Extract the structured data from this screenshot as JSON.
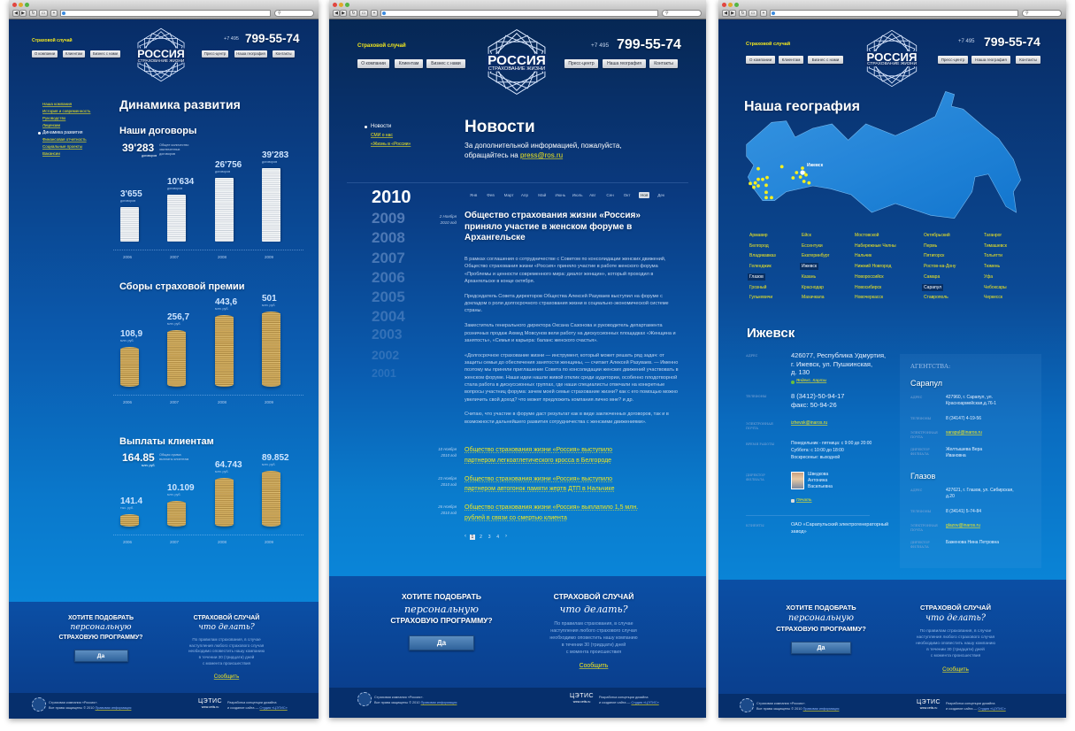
{
  "colors": {
    "accent_yellow": "#f3e81e",
    "bg_dark": "#072a5e",
    "bg_light": "#0a82d4",
    "cta_band": "#0a4a9e",
    "footer": "#062f6c"
  },
  "header": {
    "case_link": "Страховой случай",
    "phone_prefix": "+7 495",
    "phone": "799-55-74",
    "logo_title": "РОССИЯ",
    "logo_subtitle": "СТРАХОВАНИЕ ЖИЗНИ",
    "nav_left": [
      "О компании",
      "Клиентам",
      "Бизнес с нами"
    ],
    "nav_right": [
      "Пресс-центр",
      "Наша география",
      "Контакты"
    ]
  },
  "footer": {
    "cta_left": {
      "line1": "ХОТИТЕ ПОДОБРАТЬ",
      "line2": "персональную",
      "line3": "СТРАХОВУЮ ПРОГРАММУ?",
      "button": "Да"
    },
    "cta_right": {
      "title": "СТРАХОВОЙ СЛУЧАЙ",
      "subtitle": "что делать?",
      "lines": [
        "По правилам страхования, в случае",
        "наступления любого страхового случая",
        "необходимо оповестить нашу компанию",
        "в течении 30 (тридцати) дней",
        "с момента происшествия"
      ],
      "link": "Сообщить"
    },
    "company": "Страховая компания «Россия».",
    "rights": "Все права защищены © 2010",
    "legal_link": "Правовая информация",
    "studio_logo": "ЦЭТИС",
    "studio_url": "www.cetis.ru",
    "dev_line1": "Разработка концепции дизайна",
    "dev_line2": "и создание сайта —",
    "studio_link": "Студия «ЦЭТИС»"
  },
  "page_dynamics": {
    "sidebar": [
      {
        "label": "Наша компания",
        "active": false
      },
      {
        "label": "История и современность",
        "active": false
      },
      {
        "label": "Руководство",
        "active": false
      },
      {
        "label": "Лицензии",
        "active": false
      },
      {
        "label": "Динамика развития",
        "active": true
      },
      {
        "label": "Финансовая отчетность",
        "active": false
      },
      {
        "label": "Социальные проекты",
        "active": false
      },
      {
        "label": "Вакансии",
        "active": false
      }
    ],
    "title": "Динамика развития",
    "sections": [
      {
        "title": "Наши договоры",
        "kind": "paper",
        "summary": {
          "value": "39'283",
          "unit": "договоров",
          "description": "Общее количество заключенных договоров"
        },
        "items": [
          {
            "year": "2006",
            "label": "3'655",
            "unit": "договоров",
            "value": 3655
          },
          {
            "year": "2007",
            "label": "10'634",
            "unit": "договоров",
            "value": 10634
          },
          {
            "year": "2008",
            "label": "26'756",
            "unit": "договоров",
            "value": 26756
          },
          {
            "year": "2009",
            "label": "39'283",
            "unit": "договоров",
            "value": 39283
          }
        ]
      },
      {
        "title": "Сборы страховой премии",
        "kind": "coins",
        "items": [
          {
            "year": "2006",
            "label": "108,9",
            "unit": "млн. руб.",
            "value": 108.9
          },
          {
            "year": "2007",
            "label": "256,7",
            "unit": "млн. руб.",
            "value": 256.7
          },
          {
            "year": "2008",
            "label": "443,6",
            "unit": "млн. руб.",
            "value": 443.6
          },
          {
            "year": "2009",
            "label": "501",
            "unit": "млн. руб.",
            "value": 501
          }
        ]
      },
      {
        "title": "Выплаты клиентам",
        "kind": "coins",
        "summary": {
          "value": "164.85",
          "unit": "млн. руб.",
          "description": "Общая сумма выплаты клиентам"
        },
        "items": [
          {
            "year": "2006",
            "label": "141.4",
            "unit": "тыс. руб.",
            "value": 0.1414
          },
          {
            "year": "2007",
            "label": "10.109",
            "unit": "млн. руб.",
            "value": 10.109
          },
          {
            "year": "2008",
            "label": "64.743",
            "unit": "млн. руб.",
            "value": 64.743
          },
          {
            "year": "2009",
            "label": "89.852",
            "unit": "млн. руб.",
            "value": 89.852
          }
        ]
      }
    ]
  },
  "page_news": {
    "sidebar": [
      {
        "label": "Новости",
        "active": true
      },
      {
        "label": "СМИ о нас",
        "active": false
      },
      {
        "label": "«Жизнь в «России»",
        "active": false
      }
    ],
    "title": "Новости",
    "info_line1": "За дополнительной информацией, пожалуйста,",
    "info_line2": "обращайтесь на",
    "email": "press@ros.ru",
    "years": [
      "2010",
      "2009",
      "2008",
      "2007",
      "2006",
      "2005",
      "2004",
      "2003",
      "2002",
      "2001"
    ],
    "selected_year": "2010",
    "months": [
      "Янв",
      "Фев",
      "Март",
      "Апр",
      "Май",
      "Июнь",
      "Июль",
      "Авг",
      "Сен",
      "Окт",
      "Ноя",
      "Дек"
    ],
    "selected_month": "Ноя",
    "featured": {
      "date_day": "2 Ноября",
      "date_year": "2010 год",
      "title": "Общество страхования жизни «Россия» приняло участие в женском форуме в Архангельске",
      "paragraphs": [
        "В рамках соглашения о сотрудничестве с Советом по консолидации женских движений, Общество страхования жизни «Россия» приняло участие в работе женского форума «Проблемы и ценности современного мира: диалог женщин», который проходил в Архангельске в конце октября.",
        "Председатель Совета директоров Общества Алексей Разуваев выступил на форуме с докладом о роли долгосрочного страхования жизни в социально-экономической системе страны.",
        "Заместитель генерального директора Оксана Сазонова и руководитель департамента розничных продаж Ахмед Мовсунов вели работу на дискуссионных площадках «Женщина и занятость», «Семья и карьера: баланс женского счастья».",
        "«Долгосрочное страхование жизни — инструмент, который может решать ряд задач: от защиты семьи до обеспечения занятости женщины, — считает Алексей Разуваев. — Именно поэтому мы приняли приглашение Совета по консолидации женских движений участвовать в женском форуме. Наши идеи нашли живой отклик среди аудитории, особенно плодотворной стала работа в дискуссионных группах, где наши специалисты отвечали на конкретные вопросы участниц форума: зачем моей семье страхование жизни? как с его помощью можно увеличить свой доход? что может предложить компания лично мне? и др.",
        "Считаю, что участие в форуме даст результат как в виде заключенных договоров, так и в возможности дальнейшего развития сотрудничества с женскими движениями»."
      ]
    },
    "news": [
      {
        "date_day": "10 Ноября",
        "date_year": "2010 год",
        "title": "Общество страхования жизни «Россия» выступило партнером легкоатлетического кросса в Белгороде"
      },
      {
        "date_day": "23 Ноября",
        "date_year": "2010 год",
        "title": "Общество страхования жизни «Россия» выступило партнером автогонок памяти жертв ДТП в Нальчике"
      },
      {
        "date_day": "26 Ноября",
        "date_year": "2010 год",
        "title": "Общество страхования жизни «Россия» выплатило 1,5 млн. рублей в связи со смертью клиента"
      }
    ],
    "pagination": {
      "prev": "‹",
      "pages": [
        "1",
        "2",
        "3",
        "4"
      ],
      "current": "1",
      "next": "›"
    }
  },
  "page_geo": {
    "title": "Наша география",
    "map_label": "Ижевск",
    "city_columns": [
      [
        "Армавир",
        "Белгород",
        "Владикавказ",
        "Геленджик",
        "Глазов",
        "Грозный",
        "Гулькевичи"
      ],
      [
        "Ейск",
        "Ессентуки",
        "Екатеринбург",
        "Ижевск",
        "Казань",
        "Краснодар",
        "Махачкала"
      ],
      [
        "Мостовской",
        "Набережные Челны",
        "Нальчик",
        "Нижний Новгород",
        "Новороссийск",
        "Новосибирск",
        "Новочеркасск"
      ],
      [
        "Октябрьский",
        "Пермь",
        "Пятигорск",
        "Ростов-на-Дону",
        "Самара",
        "Сарапул",
        "Ставрополь"
      ],
      [
        "Таганрог",
        "Тимашевск",
        "Тольятти",
        "Тюмень",
        "Уфа",
        "Чебоксары",
        "Черкесск"
      ]
    ],
    "highlighted_cities": [
      "Глазов",
      "Ижевск",
      "Сарапул"
    ],
    "branch": {
      "city": "Ижевск",
      "address_label": "Адрес",
      "address": [
        "426077, Республика Удмуртия,",
        "г. Ижевск, ул. Пушкинская,",
        "д. 130"
      ],
      "map_link": "Яндекс. Карты",
      "phones_label": "Телефоны",
      "phones": [
        "8 (3412)-50-94-17",
        "факс: 50-94-26"
      ],
      "email_label": "Электронная почта",
      "email": "izhevsk@inaros.ru",
      "hours_label": "Время работы",
      "hours": [
        "Понедельник - пятница: с 9:00 до 20:00",
        "Суббота: с 10:00 до 18:00",
        "Воскресенье: выходной"
      ],
      "director_label": "Директор филиала",
      "director": [
        "Шведкова",
        "Антонина",
        "Васильевна"
      ],
      "print_link": "Печать",
      "clients_label": "Клиенты",
      "clients": [
        "ОАО «Сарапульский электрогенераторный",
        "завод»"
      ]
    },
    "agencies_title": "АГЕНТСТВА:",
    "agencies": [
      {
        "city": "Сарапул",
        "address": [
          "427960, г. Сарапул, ул.",
          "Красноармейская,д.76-1"
        ],
        "phone": "8 (34147) 4-19-56",
        "email": "sarapul@inaros.ru",
        "director": [
          "Желтышева Вера",
          "Ивановна"
        ]
      },
      {
        "city": "Глазов",
        "address": [
          "427621, г. Глазов, ул. Сибирская,",
          "д.20"
        ],
        "phone": "8 (34141) 5-74-84",
        "email": "glazov@inaros.ru",
        "director": [
          "Баженова Нина Петровна"
        ]
      }
    ],
    "agency_labels": {
      "address": "Адрес",
      "phone": "Телефоны",
      "email": "Электронная почта",
      "director": "Директор филиала"
    }
  }
}
